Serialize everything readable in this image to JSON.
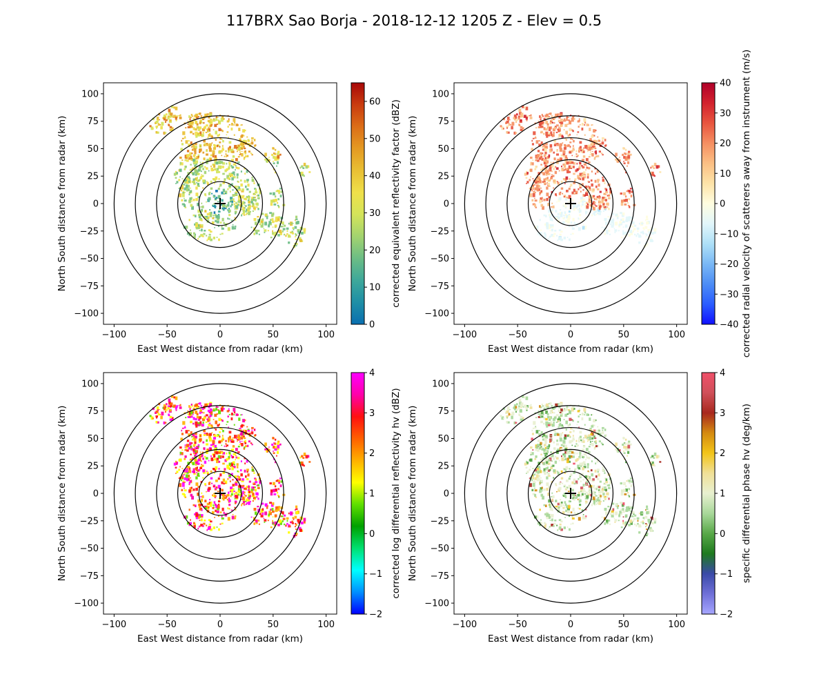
{
  "figure_title": "117BRX Sao Borja - 2018-12-12 1205 Z -  Elev = 0.5",
  "chart_data": [
    {
      "type": "heatmap",
      "panel": "top-left",
      "field": "reflectivity",
      "xlabel": "East West distance from radar (km)",
      "ylabel": "North South distance from radar (km)",
      "xlim": [
        -110,
        110
      ],
      "ylim": [
        -110,
        110
      ],
      "xticks": [
        -100,
        -50,
        0,
        50,
        100
      ],
      "yticks": [
        -100,
        -75,
        -50,
        -25,
        0,
        25,
        50,
        75,
        100
      ],
      "range_rings_km": [
        20,
        40,
        60,
        80,
        100
      ],
      "radar_position": [
        0,
        0
      ],
      "colorbar": {
        "label": "corrected equivalent reflectivity factor (dBZ)",
        "vmin": 0,
        "vmax": 65,
        "ticks": [
          0,
          10,
          20,
          30,
          40,
          50,
          60
        ],
        "colors": [
          "#0a6fb0",
          "#1f8fa6",
          "#3ea89a",
          "#6cbd85",
          "#a3d36f",
          "#d4e45a",
          "#efe04a",
          "#e9c034",
          "#e49a23",
          "#dc6e18",
          "#c93c0f",
          "#a80808"
        ]
      }
    },
    {
      "type": "heatmap",
      "panel": "top-right",
      "field": "velocity",
      "xlabel": "East West distance from radar (km)",
      "ylabel": "North South distance from radar (km)",
      "xlim": [
        -110,
        110
      ],
      "ylim": [
        -110,
        110
      ],
      "xticks": [
        -100,
        -50,
        0,
        50,
        100
      ],
      "yticks": [
        -100,
        -75,
        -50,
        -25,
        0,
        25,
        50,
        75,
        100
      ],
      "range_rings_km": [
        20,
        40,
        60,
        80,
        100
      ],
      "radar_position": [
        0,
        0
      ],
      "colorbar": {
        "label": "corrected radial velocity of scatterers away from instrument (m/s)",
        "vmin": -40,
        "vmax": 40,
        "ticks": [
          -40,
          -30,
          -20,
          -10,
          0,
          10,
          20,
          30,
          40
        ],
        "colors": [
          "#1010ff",
          "#2a5cff",
          "#4d8df5",
          "#7ab8f5",
          "#aee0f7",
          "#e2f6fa",
          "#fffde0",
          "#fde3a8",
          "#fbbf84",
          "#f58f62",
          "#e8553f",
          "#d2222e",
          "#b0002a"
        ]
      }
    },
    {
      "type": "heatmap",
      "panel": "bottom-left",
      "field": "differential_reflectivity",
      "xlabel": "East West distance from radar (km)",
      "ylabel": "North South distance from radar (km)",
      "xlim": [
        -110,
        110
      ],
      "ylim": [
        -110,
        110
      ],
      "xticks": [
        -100,
        -50,
        0,
        50,
        100
      ],
      "yticks": [
        -100,
        -75,
        -50,
        -25,
        0,
        25,
        50,
        75,
        100
      ],
      "range_rings_km": [
        20,
        40,
        60,
        80,
        100
      ],
      "radar_position": [
        0,
        0
      ],
      "colorbar": {
        "label": "corrected log differential reflectivity hv (dBZ)",
        "vmin": -2,
        "vmax": 4,
        "ticks": [
          -2,
          -1,
          0,
          1,
          2,
          3,
          4
        ],
        "colors": [
          "#0000ff",
          "#0090ff",
          "#00ffff",
          "#00e070",
          "#00a000",
          "#60e000",
          "#ffff00",
          "#ffb000",
          "#ff6000",
          "#ff1010",
          "#ff00aa",
          "#ff00ff"
        ]
      }
    },
    {
      "type": "heatmap",
      "panel": "bottom-right",
      "field": "specific_differential_phase",
      "xlabel": "East West distance from radar (km)",
      "ylabel": "North South distance from radar (km)",
      "xlim": [
        -110,
        110
      ],
      "ylim": [
        -110,
        110
      ],
      "xticks": [
        -100,
        -50,
        0,
        50,
        100
      ],
      "yticks": [
        -100,
        -75,
        -50,
        -25,
        0,
        25,
        50,
        75,
        100
      ],
      "range_rings_km": [
        20,
        40,
        60,
        80,
        100
      ],
      "radar_position": [
        0,
        0
      ],
      "colorbar": {
        "label": "specific differential phase hv (deg/km)",
        "vmin": -2,
        "vmax": 4,
        "ticks": [
          -2,
          -1,
          0,
          1,
          2,
          3,
          4
        ],
        "colors": [
          "#a6a6ff",
          "#7070d8",
          "#3a4aa8",
          "#1e7a1e",
          "#58a848",
          "#a8d89a",
          "#e8f0d0",
          "#f0e098",
          "#f2c418",
          "#d48a10",
          "#a8281e",
          "#d0505a",
          "#f0506a"
        ]
      }
    }
  ]
}
